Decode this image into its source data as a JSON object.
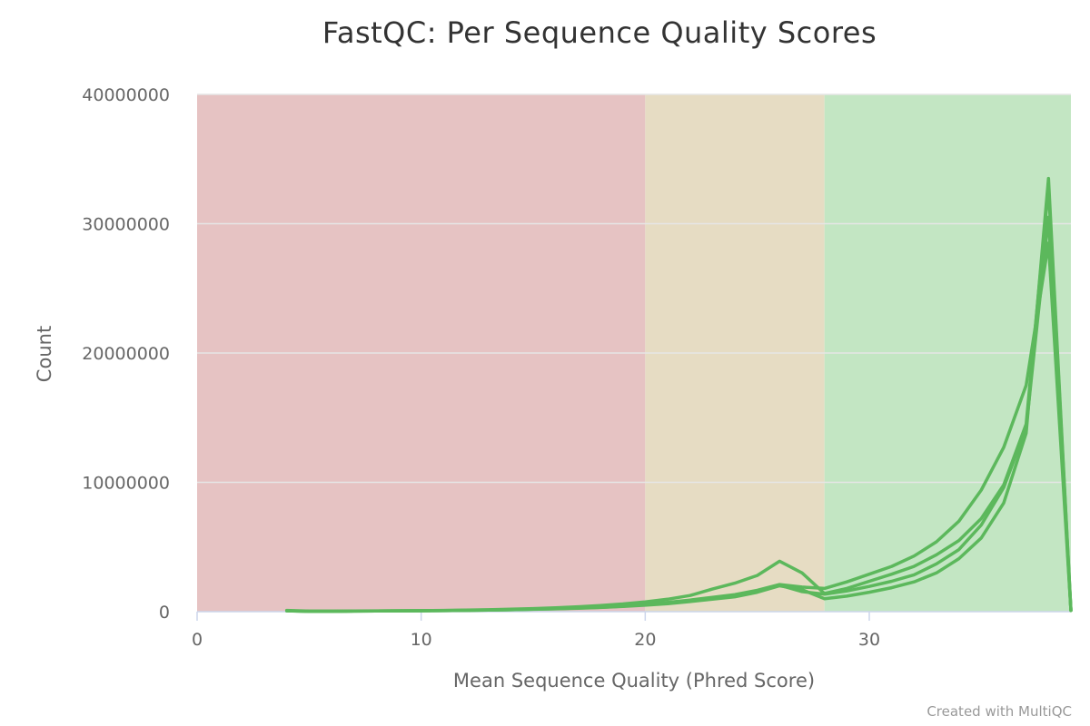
{
  "chart_data": {
    "type": "line",
    "title": "FastQC: Per Sequence Quality Scores",
    "xlabel": "Mean Sequence Quality (Phred Score)",
    "ylabel": "Count",
    "xlim": [
      0,
      39
    ],
    "ylim": [
      0,
      40000000
    ],
    "x_ticks": [
      0,
      10,
      20,
      30
    ],
    "y_ticks": [
      0,
      10000000,
      20000000,
      30000000,
      40000000
    ],
    "grid": true,
    "legend": "none",
    "credit": "Created with MultiQC",
    "bands": [
      {
        "from": 0,
        "to": 20,
        "color": "#e6c3c3"
      },
      {
        "from": 20,
        "to": 28,
        "color": "#e6dcc3"
      },
      {
        "from": 28,
        "to": 39,
        "color": "#c3e6c3"
      }
    ],
    "line_color": "#5cb85c",
    "series": [
      {
        "x": [
          4,
          5,
          6,
          7,
          8,
          9,
          10,
          11,
          12,
          13,
          14,
          15,
          16,
          17,
          18,
          19,
          20,
          21,
          22,
          23,
          24,
          25,
          26,
          27,
          28,
          29,
          30,
          31,
          32,
          33,
          34,
          35,
          36,
          37,
          38,
          39
        ],
        "values": [
          60000,
          30000,
          30000,
          40000,
          50000,
          60000,
          70000,
          80000,
          100000,
          120000,
          150000,
          180000,
          220000,
          260000,
          320000,
          400000,
          500000,
          620000,
          780000,
          960000,
          1150000,
          1500000,
          2000000,
          1700000,
          1000000,
          1200000,
          1500000,
          1850000,
          2300000,
          3000000,
          4100000,
          5700000,
          8400000,
          13800000,
          33500000,
          100000
        ]
      },
      {
        "x": [
          4,
          5,
          6,
          7,
          8,
          9,
          10,
          11,
          12,
          13,
          14,
          15,
          16,
          17,
          18,
          19,
          20,
          21,
          22,
          23,
          24,
          25,
          26,
          27,
          28,
          29,
          30,
          31,
          32,
          33,
          34,
          35,
          36,
          37,
          38,
          39
        ],
        "values": [
          100000,
          40000,
          40000,
          50000,
          60000,
          70000,
          80000,
          100000,
          120000,
          150000,
          190000,
          240000,
          300000,
          380000,
          480000,
          600000,
          760000,
          960000,
          1250000,
          1750000,
          2200000,
          2800000,
          3900000,
          3000000,
          1400000,
          1800000,
          2350000,
          2900000,
          3500000,
          4400000,
          5500000,
          7200000,
          9800000,
          14500000,
          32800000,
          100000
        ]
      },
      {
        "x": [
          4,
          5,
          6,
          7,
          8,
          9,
          10,
          11,
          12,
          13,
          14,
          15,
          16,
          17,
          18,
          19,
          20,
          21,
          22,
          23,
          24,
          25,
          26,
          27,
          28,
          29,
          30,
          31,
          32,
          33,
          34,
          35,
          36,
          37,
          38,
          39
        ],
        "values": [
          70000,
          30000,
          30000,
          40000,
          50000,
          60000,
          70000,
          90000,
          110000,
          130000,
          160000,
          200000,
          250000,
          300000,
          370000,
          460000,
          580000,
          720000,
          900000,
          1100000,
          1320000,
          1650000,
          2100000,
          1900000,
          1800000,
          2300000,
          2900000,
          3500000,
          4300000,
          5400000,
          7000000,
          9400000,
          12700000,
          17500000,
          28500000,
          100000
        ]
      },
      {
        "x": [
          4,
          5,
          6,
          7,
          8,
          9,
          10,
          11,
          12,
          13,
          14,
          15,
          16,
          17,
          18,
          19,
          20,
          21,
          22,
          23,
          24,
          25,
          26,
          27,
          28,
          29,
          30,
          31,
          32,
          33,
          34,
          35,
          36,
          37,
          38,
          39
        ],
        "values": [
          60000,
          30000,
          30000,
          40000,
          50000,
          60000,
          70000,
          80000,
          100000,
          120000,
          150000,
          190000,
          230000,
          280000,
          340000,
          420000,
          530000,
          660000,
          830000,
          1020000,
          1250000,
          1580000,
          2050000,
          1550000,
          1350000,
          1600000,
          1950000,
          2350000,
          2850000,
          3700000,
          4800000,
          6700000,
          9600000,
          14200000,
          30500000,
          100000
        ]
      }
    ]
  }
}
